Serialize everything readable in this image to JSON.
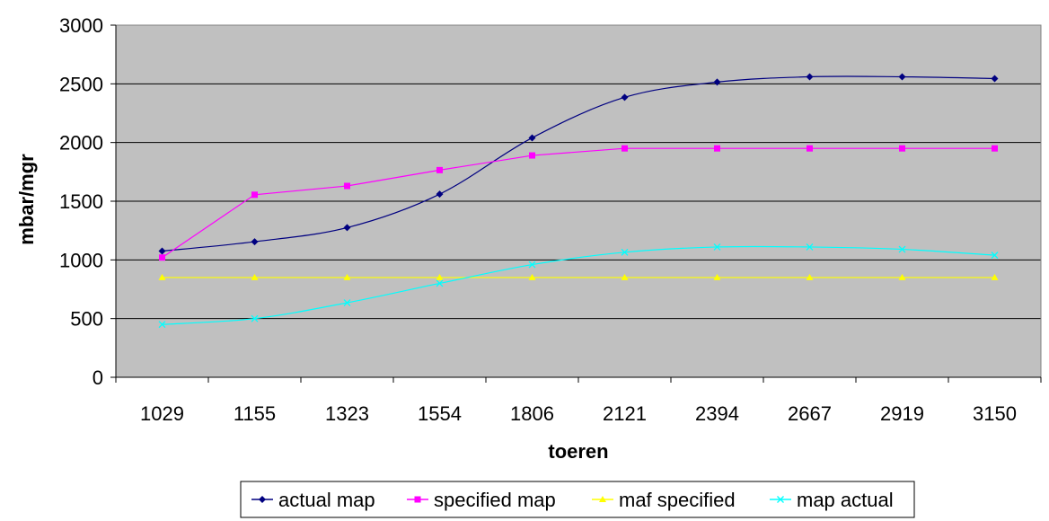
{
  "chart_data": {
    "type": "line",
    "title": "",
    "xlabel": "toeren",
    "ylabel": "mbar/mgr",
    "categories": [
      "1029",
      "1155",
      "1323",
      "1554",
      "1806",
      "2121",
      "2394",
      "2667",
      "2919",
      "3150"
    ],
    "ylim": [
      0,
      3000
    ],
    "yticks": [
      0,
      500,
      1000,
      1500,
      2000,
      2500,
      3000
    ],
    "grid": true,
    "plot_background": "#C0C0C0",
    "legend_position": "bottom",
    "series": [
      {
        "name": "actual map",
        "color": "#000080",
        "marker": "diamond",
        "values": [
          1075,
          1155,
          1275,
          1560,
          2040,
          2385,
          2515,
          2560,
          2560,
          2545
        ]
      },
      {
        "name": "specified map",
        "color": "#FF00FF",
        "marker": "square",
        "values": [
          1020,
          1555,
          1630,
          1765,
          1890,
          1950,
          1950,
          1950,
          1950,
          1950
        ]
      },
      {
        "name": "maf specified",
        "color": "#FFFF00",
        "marker": "triangle",
        "values": [
          850,
          850,
          850,
          850,
          850,
          850,
          850,
          850,
          850,
          850
        ]
      },
      {
        "name": "map actual",
        "color": "#00FFFF",
        "marker": "x",
        "values": [
          450,
          500,
          635,
          800,
          960,
          1065,
          1110,
          1110,
          1090,
          1040
        ]
      }
    ]
  }
}
